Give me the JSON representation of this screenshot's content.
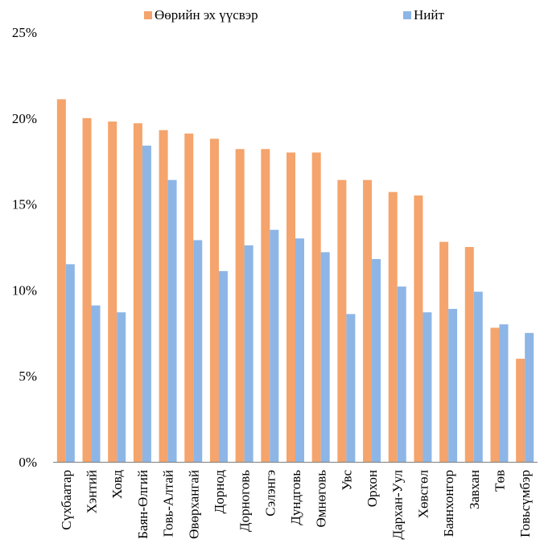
{
  "chart_data": {
    "type": "bar",
    "title": "",
    "xlabel": "",
    "ylabel": "",
    "ylim": [
      0,
      25
    ],
    "y_ticks": [
      {
        "value": 0,
        "label": "0%"
      },
      {
        "value": 5,
        "label": "5%"
      },
      {
        "value": 10,
        "label": "10%"
      },
      {
        "value": 15,
        "label": "15%"
      },
      {
        "value": 20,
        "label": "20%"
      },
      {
        "value": 25,
        "label": "25%"
      }
    ],
    "grid": false,
    "legend_position": "top-center",
    "categories": [
      "Сүхбаатар",
      "Хэнтий",
      "Ховд",
      "Баян-Өлгий",
      "Говь-Алтай",
      "Өвөрхангай",
      "Дорнод",
      "Дорноговь",
      "Сэлэнгэ",
      "Дундговь",
      "Өмнөговь",
      "Увс",
      "Орхон",
      "Дархан-Уул",
      "Хөвсгөл",
      "Баянхонгор",
      "Завхан",
      "Төв",
      "Говьсүмбэр"
    ],
    "series": [
      {
        "name": "Өөрийн эх үүсвэр",
        "color": "#f4a46c",
        "values": [
          21.1,
          20.0,
          19.8,
          19.7,
          19.3,
          19.1,
          18.8,
          18.2,
          18.2,
          18.0,
          18.0,
          16.4,
          16.4,
          15.7,
          15.5,
          12.8,
          12.5,
          7.8,
          6.0
        ]
      },
      {
        "name": "Нийт",
        "color": "#8db6e6",
        "values": [
          11.5,
          9.1,
          8.7,
          18.4,
          16.4,
          12.9,
          11.1,
          12.6,
          13.5,
          13.0,
          12.2,
          8.6,
          11.8,
          10.2,
          8.7,
          8.9,
          9.9,
          8.0,
          7.5
        ]
      }
    ]
  }
}
